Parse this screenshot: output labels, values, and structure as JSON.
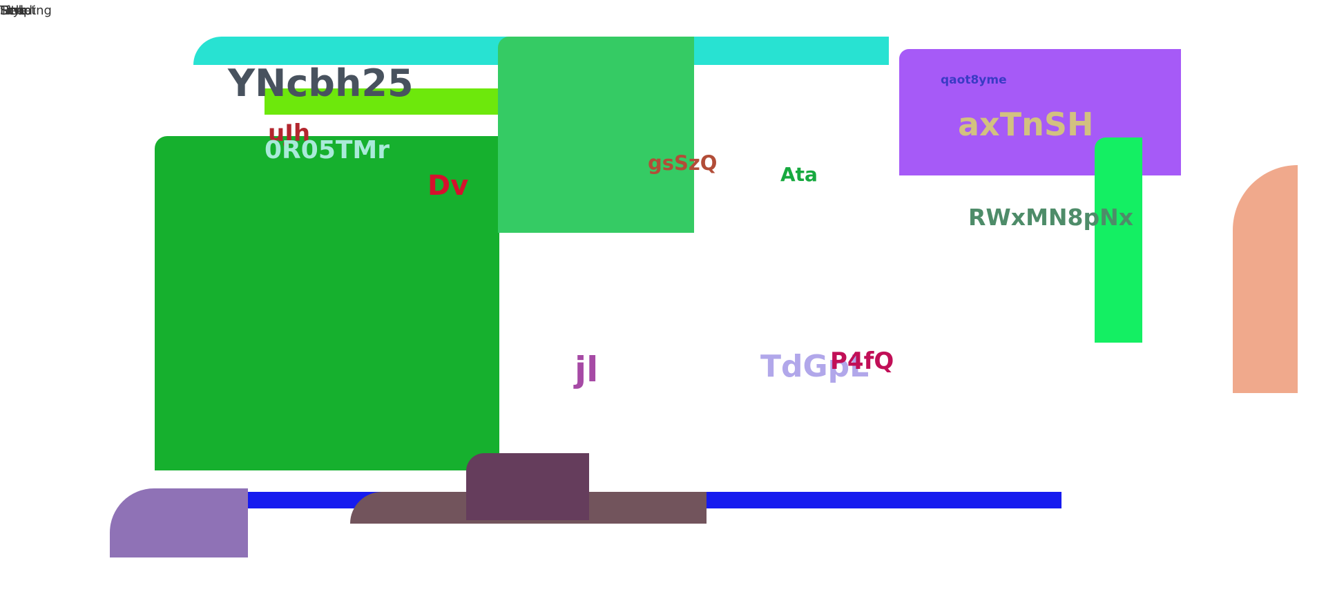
{
  "top_notes": [
    "Script",
    "Style",
    "Title",
    "Heading",
    "Link"
  ],
  "labels": {
    "l1": "YNcbh25",
    "l2": "uJh",
    "l3": "0R05TMr",
    "l4": "Dv",
    "l5": "gsSzQ",
    "l6": "Ata",
    "l7": "qaot8yme",
    "l8": "axTnSH",
    "l9": "RWxMN8pNx",
    "l10": "jl",
    "l11": "TdGpL",
    "l12": "P4fQ"
  },
  "colors": {
    "cyan_bar": "#28e2d2",
    "lime_bar": "#6de80c",
    "green_block": "#16b02e",
    "mid_green_block": "#35cb64",
    "purple_panel": "#a65af7",
    "bright_green_bar": "#14ef63",
    "salmon_arch": "#f0a98c",
    "blue_bar": "#161bef",
    "lavender_block": "#8f72b6",
    "mauve_bar": "#72545c",
    "plum_block": "#653d5c"
  }
}
